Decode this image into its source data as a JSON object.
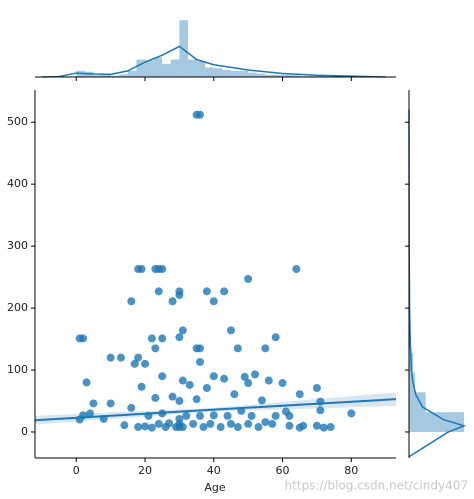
{
  "chart_data": {
    "type": "scatter",
    "x_label": "Age",
    "watermark": "https://blog.csdn.net/cindy407",
    "color": "#1f77b4",
    "xlim": [
      -12,
      93
    ],
    "ylim": [
      -42,
      552
    ],
    "xticks": [
      0,
      20,
      40,
      60,
      80
    ],
    "yticks": [
      0,
      100,
      200,
      300,
      400,
      500
    ],
    "x": [
      35,
      36,
      18,
      19,
      23,
      24,
      25,
      64,
      50,
      24,
      30,
      30,
      38,
      43,
      16,
      40,
      28,
      1,
      2,
      22,
      25,
      30,
      36,
      35,
      45,
      31,
      23,
      18,
      10,
      13,
      55,
      58,
      47,
      20,
      17,
      25,
      31,
      40,
      43,
      50,
      49,
      52,
      60,
      65,
      70,
      71,
      80,
      74,
      3,
      62,
      56,
      36,
      4,
      2,
      1,
      5,
      8,
      10,
      14,
      16,
      18,
      19,
      20,
      21,
      22,
      23,
      24,
      25,
      26,
      27,
      28,
      29,
      30,
      30,
      30,
      30,
      31,
      32,
      33,
      34,
      35,
      36,
      37,
      38,
      39,
      40,
      42,
      44,
      45,
      46,
      47,
      48,
      50,
      51,
      53,
      54,
      55,
      57,
      58,
      61,
      62,
      65,
      66,
      70,
      72,
      71
    ],
    "values": [
      512,
      512,
      263,
      263,
      263,
      263,
      263,
      263,
      247,
      227,
      227,
      221,
      227,
      227,
      211,
      211,
      211,
      151,
      151,
      151,
      151,
      153,
      135,
      135,
      164,
      164,
      135,
      120,
      120,
      120,
      135,
      153,
      135,
      110,
      110,
      90,
      83,
      90,
      86,
      79,
      89,
      93,
      79,
      61,
      71,
      49,
      30,
      8,
      80,
      26,
      83,
      113,
      30,
      27,
      20,
      46,
      21,
      46,
      11,
      39,
      8,
      73,
      9,
      26,
      7,
      55,
      13,
      30,
      8,
      14,
      57,
      8,
      13,
      8,
      21,
      50,
      8,
      26,
      76,
      13,
      53,
      26,
      8,
      71,
      13,
      27,
      8,
      26,
      13,
      61,
      8,
      34,
      13,
      26,
      8,
      51,
      16,
      13,
      26,
      33,
      10,
      7,
      10,
      10,
      7,
      35
    ],
    "regression": {
      "x": [
        -12,
        40,
        93
      ],
      "values": [
        19,
        36,
        53
      ],
      "lower": [
        12,
        33,
        42
      ],
      "upper": [
        26,
        39,
        64
      ]
    },
    "x_hist": {
      "bins": [
        0,
        2.5,
        5,
        7.5,
        10,
        12.5,
        15,
        17.5,
        20,
        22.5,
        25,
        27.5,
        30,
        32.5,
        35,
        37.5,
        40,
        42.5,
        45,
        47.5,
        50,
        52.5,
        55,
        57.5,
        60,
        62.5,
        65,
        67.5,
        70,
        72.5,
        75,
        77.5,
        80
      ],
      "counts": [
        14,
        12,
        4,
        5,
        3,
        6,
        14,
        40,
        38,
        45,
        30,
        40,
        130,
        40,
        36,
        22,
        20,
        16,
        14,
        14,
        10,
        8,
        5,
        5,
        5,
        4,
        2,
        2,
        3,
        1,
        0,
        1
      ],
      "ylim": [
        0,
        135
      ],
      "kde_x": [
        -10,
        -5,
        0,
        5,
        10,
        15,
        20,
        25,
        28,
        30,
        32,
        35,
        40,
        45,
        50,
        55,
        60,
        70,
        80,
        90
      ],
      "kde": [
        0,
        1,
        9,
        7,
        6,
        14,
        34,
        50,
        62,
        70,
        58,
        40,
        28,
        22,
        16,
        12,
        8,
        4,
        2,
        0
      ]
    },
    "y_hist": {
      "bins": [
        0,
        32,
        64,
        96,
        128,
        160,
        192,
        224,
        256,
        288,
        320,
        352,
        384,
        416,
        448,
        480,
        512,
        544
      ],
      "counts": [
        560,
        170,
        60,
        40,
        20,
        10,
        10,
        4,
        9,
        0,
        0,
        0,
        0,
        0,
        0,
        0,
        3
      ],
      "xlim": [
        0,
        600
      ],
      "kde_y": [
        -40,
        0,
        10,
        20,
        40,
        60,
        80,
        100,
        150,
        200,
        250,
        300,
        400,
        520
      ],
      "kde": [
        0,
        400,
        560,
        350,
        140,
        70,
        40,
        25,
        12,
        6,
        4,
        2,
        1,
        0
      ]
    }
  }
}
